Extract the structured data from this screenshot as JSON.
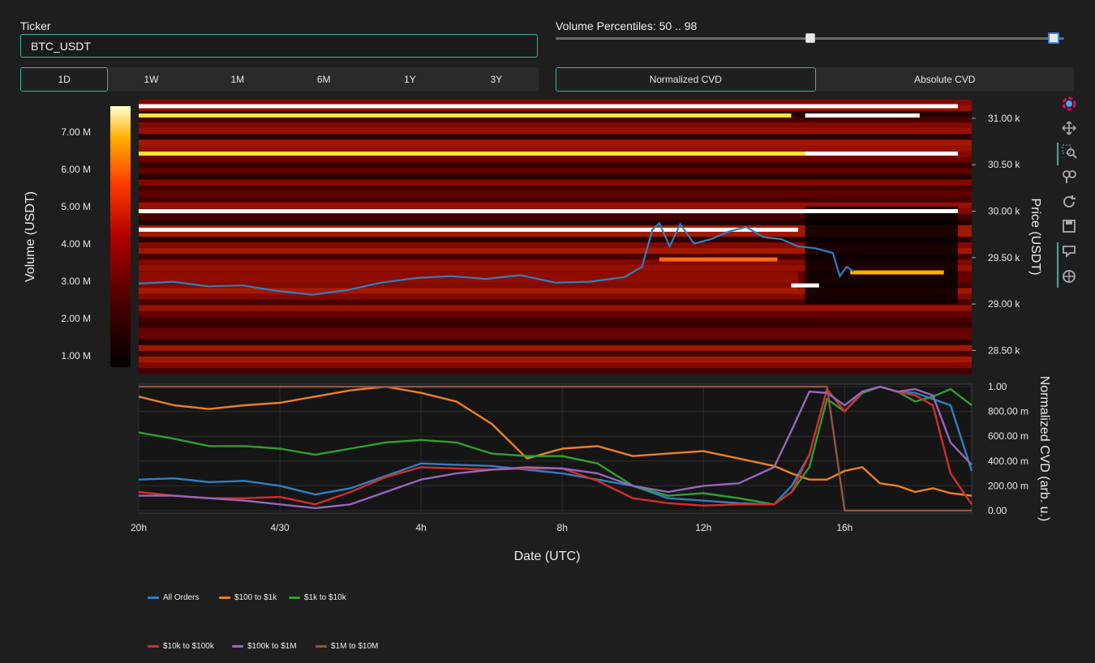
{
  "ticker": {
    "label": "Ticker",
    "value": "BTC_USDT"
  },
  "timeframes": [
    "1D",
    "1W",
    "1M",
    "6M",
    "1Y",
    "3Y"
  ],
  "timeframe_selected": "1D",
  "volume_percentiles": {
    "label": "Volume Percentiles: 50 .. 98",
    "low": 50,
    "high": 98,
    "min": 0,
    "max": 100
  },
  "cvd_modes": [
    "Normalized CVD",
    "Absolute CVD"
  ],
  "cvd_mode_selected": "Normalized CVD",
  "toolbar_icons": [
    "plotly-logo-icon",
    "pan-icon",
    "zoom-icon",
    "lasso-icon",
    "reset-icon",
    "download-icon",
    "hover-compare-icon",
    "hover-closest-icon"
  ],
  "colors": {
    "accent": "#2fb3a3",
    "background": "#1e1e1e",
    "price_line": "#2f7fc1"
  },
  "chart_data": [
    {
      "type": "heatmap",
      "ylabel": "Price (USDT)",
      "colorbar_title": "Volume (USDT)",
      "colorbar_ticks": [
        "1.00 M",
        "2.00 M",
        "3.00 M",
        "4.00 M",
        "5.00 M",
        "6.00 M",
        "7.00 M"
      ],
      "colorbar_range": [
        0.7,
        7.7
      ],
      "y_ticks": [
        "28.50 k",
        "29.00 k",
        "29.50 k",
        "30.00 k",
        "30.50 k",
        "31.00 k"
      ],
      "ylim": [
        28250,
        31200
      ],
      "xlim": [
        0,
        24
      ],
      "price_series": {
        "name": "Price",
        "x": [
          0,
          1,
          2,
          3,
          4,
          5,
          6,
          7,
          8,
          9,
          10,
          11,
          12,
          13,
          14,
          14.5,
          14.8,
          15.0,
          15.3,
          15.6,
          16.0,
          16.5,
          17.0,
          17.5,
          18.0,
          18.5,
          19.0,
          19.5,
          20.0,
          20.2,
          20.4,
          20.6
        ],
        "values": [
          29220,
          29240,
          29190,
          29200,
          29140,
          29100,
          29150,
          29230,
          29280,
          29300,
          29270,
          29310,
          29230,
          29240,
          29290,
          29400,
          29800,
          29870,
          29620,
          29860,
          29650,
          29700,
          29780,
          29830,
          29720,
          29700,
          29620,
          29600,
          29550,
          29300,
          29400,
          29350
        ]
      },
      "key_levels": [
        {
          "price": 31130,
          "color": "#ffffff",
          "x0": 0,
          "x1": 23.6
        },
        {
          "price": 31030,
          "color": "#ffe23a",
          "x0": 0,
          "x1": 18.8
        },
        {
          "price": 31030,
          "color": "#ffffff",
          "x0": 19.2,
          "x1": 22.5
        },
        {
          "price": 30620,
          "color": "#ffe23a",
          "x0": 0,
          "x1": 19.2
        },
        {
          "price": 30620,
          "color": "#ffffff",
          "x0": 19.2,
          "x1": 23.6
        },
        {
          "price": 30000,
          "color": "#ffffff",
          "x0": 0,
          "x1": 23.6
        },
        {
          "price": 29800,
          "color": "#ffffff",
          "x0": 0,
          "x1": 19.0
        },
        {
          "price": 29200,
          "color": "#ffffff",
          "x0": 18.8,
          "x1": 19.6
        },
        {
          "price": 29340,
          "color": "#ffb000",
          "x0": 20.5,
          "x1": 23.2
        },
        {
          "price": 29480,
          "color": "#ff6a1a",
          "x0": 15.0,
          "x1": 18.4
        }
      ]
    },
    {
      "type": "line",
      "xlabel": "Date (UTC)",
      "ylabel": "Normalized CVD (arb. u.)",
      "x_ticks": [
        {
          "x": 0,
          "label": "20h"
        },
        {
          "x": 4,
          "label": "4/30"
        },
        {
          "x": 8,
          "label": "4h"
        },
        {
          "x": 12,
          "label": "8h"
        },
        {
          "x": 16,
          "label": "12h"
        },
        {
          "x": 20,
          "label": "16h"
        }
      ],
      "y_ticks": [
        "0.00",
        "200.00 m",
        "400.00 m",
        "600.00 m",
        "800.00 m",
        "1.00"
      ],
      "ylim": [
        -0.02,
        1.02
      ],
      "xlim": [
        0,
        23.6
      ],
      "x": [
        0,
        1,
        2,
        3,
        4,
        5,
        6,
        7,
        8,
        9,
        10,
        11,
        12,
        13,
        14,
        15,
        16,
        17,
        18,
        18.5,
        19,
        19.5,
        20,
        20.5,
        21,
        21.5,
        22,
        22.5,
        23,
        23.6
      ],
      "series": [
        {
          "name": "All Orders",
          "color": "#2f7fc1",
          "values": [
            0.25,
            0.26,
            0.23,
            0.24,
            0.2,
            0.13,
            0.18,
            0.28,
            0.38,
            0.37,
            0.36,
            0.33,
            0.3,
            0.25,
            0.2,
            0.1,
            0.08,
            0.06,
            0.05,
            0.2,
            0.45,
            0.98,
            0.8,
            0.95,
            1.0,
            0.96,
            0.95,
            0.9,
            0.85,
            0.32
          ]
        },
        {
          "name": "$100 to $1k",
          "color": "#f07f21",
          "values": [
            0.92,
            0.85,
            0.82,
            0.85,
            0.87,
            0.92,
            0.97,
            1.0,
            0.95,
            0.88,
            0.7,
            0.42,
            0.5,
            0.52,
            0.44,
            0.46,
            0.48,
            0.42,
            0.36,
            0.3,
            0.25,
            0.25,
            0.32,
            0.35,
            0.22,
            0.2,
            0.15,
            0.18,
            0.14,
            0.12
          ]
        },
        {
          "name": "$1k to $10k",
          "color": "#2ea02e",
          "values": [
            0.63,
            0.58,
            0.52,
            0.52,
            0.5,
            0.45,
            0.5,
            0.55,
            0.57,
            0.55,
            0.46,
            0.44,
            0.44,
            0.38,
            0.2,
            0.12,
            0.14,
            0.1,
            0.05,
            0.15,
            0.35,
            0.9,
            0.8,
            0.95,
            1.0,
            0.96,
            0.88,
            0.92,
            0.98,
            0.85
          ]
        },
        {
          "name": "$10k to $100k",
          "color": "#d42c2c",
          "values": [
            0.15,
            0.12,
            0.1,
            0.1,
            0.11,
            0.05,
            0.15,
            0.27,
            0.35,
            0.34,
            0.33,
            0.34,
            0.34,
            0.24,
            0.1,
            0.06,
            0.04,
            0.05,
            0.05,
            0.15,
            0.45,
            0.98,
            0.8,
            0.96,
            1.0,
            0.96,
            0.93,
            0.85,
            0.3,
            0.05
          ]
        },
        {
          "name": "$100k to $1M",
          "color": "#9467bd",
          "values": [
            0.12,
            0.12,
            0.1,
            0.08,
            0.05,
            0.02,
            0.05,
            0.15,
            0.25,
            0.3,
            0.33,
            0.35,
            0.34,
            0.3,
            0.2,
            0.15,
            0.2,
            0.22,
            0.35,
            0.65,
            0.96,
            0.95,
            0.85,
            0.96,
            1.0,
            0.96,
            0.98,
            0.93,
            0.55,
            0.37
          ]
        },
        {
          "name": "$1M to $10M",
          "color": "#8c564b",
          "values": [
            1.0,
            1.0,
            1.0,
            1.0,
            1.0,
            1.0,
            1.0,
            1.0,
            1.0,
            1.0,
            1.0,
            1.0,
            1.0,
            1.0,
            1.0,
            1.0,
            1.0,
            1.0,
            1.0,
            1.0,
            1.0,
            1.0,
            0.0,
            0.0,
            0.0,
            0.0,
            0.0,
            0.0,
            0.0,
            0.0
          ]
        }
      ]
    }
  ]
}
